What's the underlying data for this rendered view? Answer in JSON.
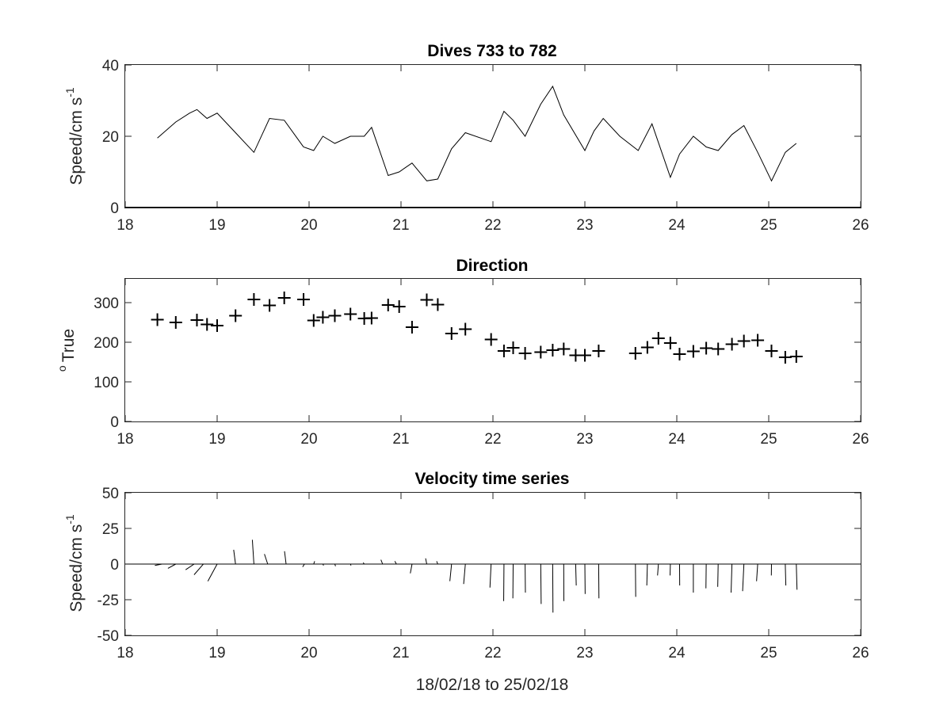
{
  "chart_data": [
    {
      "type": "line",
      "title": "Dives 733 to 782",
      "ylabel": "Speed/cm s",
      "ylabel_sup": "-1",
      "xlim": [
        18,
        26
      ],
      "ylim": [
        0,
        40
      ],
      "xticks": [
        18,
        19,
        20,
        21,
        22,
        23,
        24,
        25,
        26
      ],
      "yticks": [
        0,
        20,
        40
      ],
      "x": [
        18.35,
        18.55,
        18.7,
        18.78,
        18.89,
        19.0,
        19.2,
        19.4,
        19.57,
        19.73,
        19.94,
        20.05,
        20.15,
        20.28,
        20.45,
        20.6,
        20.68,
        20.86,
        20.98,
        21.12,
        21.28,
        21.4,
        21.55,
        21.7,
        21.98,
        22.12,
        22.22,
        22.35,
        22.52,
        22.65,
        22.77,
        23.0,
        23.1,
        23.2,
        23.38,
        23.58,
        23.73,
        23.93,
        24.03,
        24.18,
        24.32,
        24.45,
        24.6,
        24.73,
        24.88,
        25.03,
        25.18,
        25.3
      ],
      "y": [
        19.5,
        24,
        26.5,
        27.5,
        25,
        26.5,
        21,
        15.5,
        25,
        24.5,
        17,
        16,
        20,
        18,
        20,
        20,
        22.5,
        9,
        10,
        12.5,
        7.5,
        8,
        16.5,
        21,
        18.5,
        27,
        24.5,
        20,
        29,
        34,
        26,
        16,
        21.5,
        25,
        20,
        16,
        23.5,
        8.5,
        15,
        20,
        17,
        16,
        20.5,
        23,
        15.5,
        7.5,
        15.5,
        18
      ]
    },
    {
      "type": "scatter",
      "title": "Direction",
      "ylabel": "True",
      "ylabel_sup": "o",
      "xlim": [
        18,
        26
      ],
      "ylim": [
        0,
        360
      ],
      "xticks": [
        18,
        19,
        20,
        21,
        22,
        23,
        24,
        25,
        26
      ],
      "yticks": [
        0,
        100,
        200,
        300
      ],
      "marker": "+",
      "x": [
        18.35,
        18.55,
        18.78,
        18.89,
        19.0,
        19.2,
        19.4,
        19.57,
        19.73,
        19.94,
        20.05,
        20.15,
        20.28,
        20.45,
        20.6,
        20.68,
        20.86,
        20.98,
        21.12,
        21.28,
        21.4,
        21.55,
        21.7,
        21.98,
        22.12,
        22.22,
        22.35,
        22.52,
        22.65,
        22.77,
        22.9,
        23.0,
        23.15,
        23.55,
        23.68,
        23.8,
        23.93,
        24.03,
        24.18,
        24.32,
        24.45,
        24.6,
        24.73,
        24.88,
        25.03,
        25.18,
        25.3
      ],
      "y": [
        257,
        250,
        256,
        245,
        242,
        267,
        308,
        293,
        312,
        308,
        255,
        263,
        267,
        271,
        260,
        261,
        294,
        290,
        238,
        307,
        295,
        222,
        233,
        207,
        178,
        186,
        172,
        175,
        180,
        183,
        167,
        167,
        178,
        172,
        187,
        210,
        198,
        170,
        177,
        185,
        183,
        195,
        203,
        205,
        178,
        162,
        164
      ]
    },
    {
      "type": "quiver",
      "title": "Velocity time series",
      "xlabel": "18/02/18 to 25/02/18",
      "ylabel": "Speed/cm s",
      "ylabel_sup": "-1",
      "xlim": [
        18,
        26
      ],
      "ylim": [
        -50,
        50
      ],
      "xticks": [
        18,
        19,
        20,
        21,
        22,
        23,
        24,
        25,
        26
      ],
      "yticks": [
        50,
        25,
        0,
        -25,
        -50
      ],
      "ytick_labels": [
        "50",
        "25",
        "0",
        "-25",
        "-50"
      ],
      "vectors": [
        {
          "x": 18.4,
          "u": -5.0,
          "v": -1.0
        },
        {
          "x": 18.55,
          "u": -5.5,
          "v": -3.0
        },
        {
          "x": 18.75,
          "u": -6.0,
          "v": -4.0
        },
        {
          "x": 18.85,
          "u": -6.5,
          "v": -7.5
        },
        {
          "x": 19.0,
          "u": -6.5,
          "v": -12.0
        },
        {
          "x": 19.2,
          "u": -1.3,
          "v": 10.0
        },
        {
          "x": 19.4,
          "u": -1.1,
          "v": 17.0
        },
        {
          "x": 19.55,
          "u": -2.3,
          "v": 7.0
        },
        {
          "x": 19.75,
          "u": -1.1,
          "v": 9.0
        },
        {
          "x": 19.95,
          "u": -1.3,
          "v": -2.0
        },
        {
          "x": 20.05,
          "u": 0.7,
          "v": 2.0
        },
        {
          "x": 20.15,
          "u": 0.5,
          "v": -1.0
        },
        {
          "x": 20.28,
          "u": 0.5,
          "v": -1.5
        },
        {
          "x": 20.45,
          "u": 0.4,
          "v": -1.0
        },
        {
          "x": 20.6,
          "u": -0.7,
          "v": 1.0
        },
        {
          "x": 20.8,
          "u": -1.2,
          "v": 3.0
        },
        {
          "x": 20.95,
          "u": -1.1,
          "v": 2.0
        },
        {
          "x": 21.12,
          "u": -1.2,
          "v": -6.5
        },
        {
          "x": 21.28,
          "u": -0.8,
          "v": 4.0
        },
        {
          "x": 21.4,
          "u": -0.8,
          "v": 2.0
        },
        {
          "x": 21.55,
          "u": -1.2,
          "v": -12.0
        },
        {
          "x": 21.7,
          "u": -1.2,
          "v": -14.0
        },
        {
          "x": 21.98,
          "u": -0.8,
          "v": -16.5
        },
        {
          "x": 22.12,
          "u": -0.2,
          "v": -26.0
        },
        {
          "x": 22.22,
          "u": -0.2,
          "v": -24.0
        },
        {
          "x": 22.35,
          "u": 0.2,
          "v": -20.0
        },
        {
          "x": 22.52,
          "u": 0.3,
          "v": -28.0
        },
        {
          "x": 22.65,
          "u": 0.2,
          "v": -34.0
        },
        {
          "x": 22.77,
          "u": 0.1,
          "v": -26.0
        },
        {
          "x": 22.9,
          "u": 0.4,
          "v": -15.0
        },
        {
          "x": 23.0,
          "u": 0.2,
          "v": -21.0
        },
        {
          "x": 23.15,
          "u": 0.2,
          "v": -24.0
        },
        {
          "x": 23.55,
          "u": 0.2,
          "v": -23.0
        },
        {
          "x": 23.68,
          "u": -0.4,
          "v": -15.0
        },
        {
          "x": 23.8,
          "u": -0.6,
          "v": -8.0
        },
        {
          "x": 23.93,
          "u": -0.2,
          "v": -8.0
        },
        {
          "x": 24.03,
          "u": 0.1,
          "v": -15.0
        },
        {
          "x": 24.18,
          "u": 0.0,
          "v": -20.0
        },
        {
          "x": 24.32,
          "u": -0.2,
          "v": -17.0
        },
        {
          "x": 24.45,
          "u": -0.3,
          "v": -16.0
        },
        {
          "x": 24.6,
          "u": -0.6,
          "v": -20.0
        },
        {
          "x": 24.73,
          "u": -0.9,
          "v": -19.0
        },
        {
          "x": 24.88,
          "u": -0.8,
          "v": -12.0
        },
        {
          "x": 25.03,
          "u": -0.1,
          "v": -8.0
        },
        {
          "x": 25.18,
          "u": 0.4,
          "v": -15.0
        },
        {
          "x": 25.3,
          "u": 0.5,
          "v": -18.0
        }
      ]
    }
  ]
}
